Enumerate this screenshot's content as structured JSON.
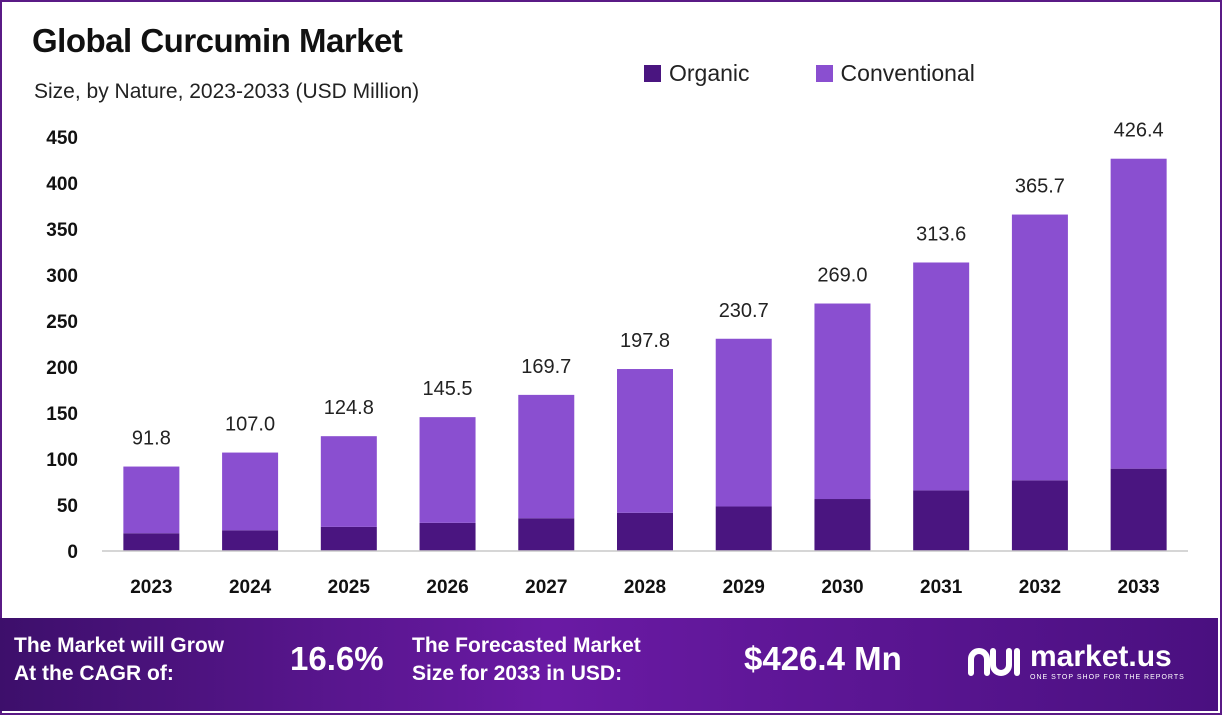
{
  "chart_data": {
    "type": "bar",
    "stacked": true,
    "title": "Global Curcumin Market",
    "subtitle": "Size, by Nature, 2023-2033 (USD Million)",
    "categories": [
      "2023",
      "2024",
      "2025",
      "2026",
      "2027",
      "2028",
      "2029",
      "2030",
      "2031",
      "2032",
      "2033"
    ],
    "series": [
      {
        "name": "Organic",
        "color": "#4a1580",
        "values": [
          19.3,
          22.5,
          26.2,
          30.6,
          35.6,
          41.5,
          48.4,
          56.5,
          65.9,
          76.8,
          89.5
        ]
      },
      {
        "name": "Conventional",
        "color": "#8a4fd0",
        "values": [
          72.5,
          84.5,
          98.6,
          114.9,
          134.1,
          156.3,
          182.3,
          212.5,
          247.7,
          288.9,
          336.9
        ]
      }
    ],
    "totals": [
      91.8,
      107.0,
      124.8,
      145.5,
      169.7,
      197.8,
      230.7,
      269.0,
      313.6,
      365.7,
      426.4
    ],
    "total_labels": [
      "91.8",
      "107.0",
      "124.8",
      "145.5",
      "169.7",
      "197.8",
      "230.7",
      "269.0",
      "313.6",
      "365.7",
      "426.4"
    ],
    "yticks": [
      0,
      50,
      100,
      150,
      200,
      250,
      300,
      350,
      400,
      450
    ],
    "ylim": [
      0,
      450
    ],
    "xlabel": "",
    "ylabel": "",
    "grid": false,
    "legend_position": "top-right"
  },
  "footer": {
    "cagr_label_line1": "The Market will Grow",
    "cagr_label_line2": "At the CAGR of:",
    "cagr_value": "16.6%",
    "forecast_label_line1": "The Forecasted Market",
    "forecast_label_line2": "Size for 2033 in USD:",
    "forecast_value": "$426.4 Mn",
    "brand_name": "market.us",
    "brand_tagline": "ONE STOP SHOP FOR THE REPORTS"
  },
  "colors": {
    "frame": "#5a1a86",
    "organic": "#4a1580",
    "conventional": "#8a4fd0"
  }
}
